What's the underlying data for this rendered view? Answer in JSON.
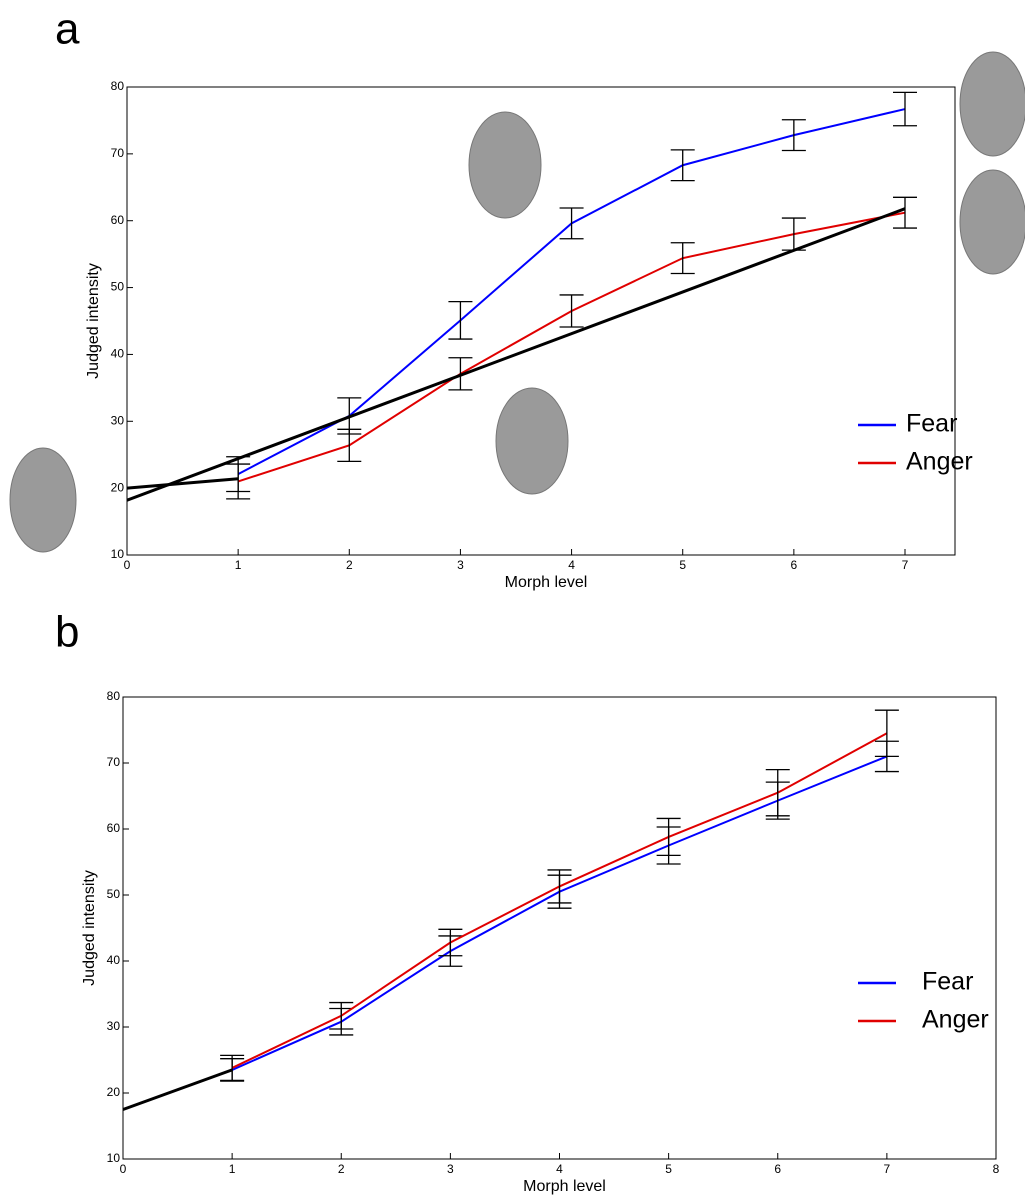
{
  "chart_data": [
    {
      "type": "line",
      "label": "a",
      "xlabel": "Morph level",
      "ylabel": "Judged intensity",
      "xlim": [
        0,
        7
      ],
      "xticks": [
        0,
        1,
        2,
        3,
        4,
        5,
        6,
        7
      ],
      "ylim": [
        10,
        80
      ],
      "yticks": [
        10,
        20,
        30,
        40,
        50,
        60,
        70,
        80
      ],
      "legend": "right",
      "series": [
        {
          "name": "Fear",
          "color": "#0000ff",
          "x": [
            1,
            2,
            3,
            4,
            5,
            6,
            7
          ],
          "values": [
            22.1,
            30.8,
            45.1,
            59.6,
            68.3,
            72.8,
            76.7
          ],
          "errors": [
            2.6,
            2.7,
            2.8,
            2.3,
            2.3,
            2.3,
            2.5
          ]
        },
        {
          "name": "Anger",
          "color": "#e00000",
          "x": [
            1,
            2,
            3,
            4,
            5,
            6,
            7
          ],
          "values": [
            21.0,
            26.4,
            37.1,
            46.5,
            54.4,
            58.0,
            61.2
          ],
          "errors": [
            2.6,
            2.4,
            2.4,
            2.4,
            2.3,
            2.4,
            2.3
          ]
        },
        {
          "color": "#000000",
          "x": [
            0,
            7
          ],
          "values": [
            18.2,
            61.8
          ]
        },
        {
          "color": "#000000",
          "x": [
            0,
            1
          ],
          "values": [
            20.0,
            21.4
          ]
        }
      ]
    },
    {
      "type": "line",
      "label": "b",
      "xlabel": "Morph level",
      "ylabel": "Judged intensity",
      "xlim": [
        0,
        8
      ],
      "xticks": [
        0,
        1,
        2,
        3,
        4,
        5,
        6,
        7,
        8
      ],
      "ylim": [
        10,
        80
      ],
      "yticks": [
        10,
        20,
        30,
        40,
        50,
        60,
        70,
        80
      ],
      "legend": "right",
      "series": [
        {
          "name": "Fear",
          "color": "#0000ff",
          "x": [
            1,
            2,
            3,
            4,
            5,
            6,
            7
          ],
          "values": [
            23.5,
            30.8,
            41.5,
            50.5,
            57.5,
            64.3,
            71.0
          ],
          "errors": [
            1.7,
            2.0,
            2.3,
            2.5,
            2.8,
            2.8,
            2.3
          ]
        },
        {
          "name": "Anger",
          "color": "#e00000",
          "x": [
            1,
            2,
            3,
            4,
            5,
            6,
            7
          ],
          "values": [
            23.8,
            31.7,
            42.8,
            51.3,
            58.8,
            65.5,
            74.5
          ],
          "errors": [
            1.9,
            2.0,
            2.0,
            2.5,
            2.8,
            3.5,
            3.5
          ]
        },
        {
          "color": "#000000",
          "x": [
            0,
            1
          ],
          "values": [
            17.5,
            23.5
          ]
        }
      ]
    }
  ]
}
